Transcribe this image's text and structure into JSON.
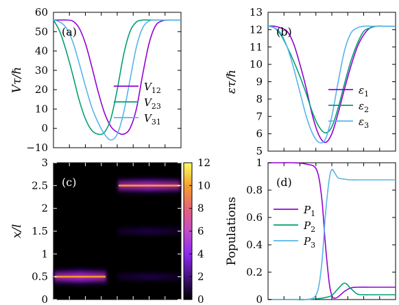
{
  "colors": {
    "purple": "#9400d3",
    "green": "#009e73",
    "cyan": "#56b4e9"
  },
  "chart_data": [
    {
      "type": "line",
      "panel_label": "(a)",
      "ylabel": "Vτ/ℏ",
      "xlabel": "",
      "ylim": [
        -10,
        60
      ],
      "yticks": [
        "−10",
        "0",
        "10",
        "20",
        "30",
        "40",
        "50",
        "60"
      ],
      "xlim": [
        0,
        1
      ],
      "grid": false,
      "legend": "bottom-right",
      "series": [
        {
          "name": "V12",
          "label_main": "V",
          "label_sub": "12",
          "color": "#9400d3",
          "x": [
            0,
            0.05,
            0.1,
            0.15,
            0.2,
            0.25,
            0.3,
            0.35,
            0.4,
            0.45,
            0.5,
            0.55,
            0.6,
            0.65,
            0.7,
            0.75,
            0.8,
            0.85,
            0.9,
            0.95,
            1
          ],
          "y": [
            56,
            56,
            56,
            55.5,
            52,
            44,
            32,
            19,
            8,
            1,
            -2,
            -3,
            0,
            10,
            28,
            44,
            53,
            55.5,
            56,
            56,
            56
          ]
        },
        {
          "name": "V23",
          "label_main": "V",
          "label_sub": "23",
          "color": "#009e73",
          "x": [
            0,
            0.05,
            0.1,
            0.15,
            0.2,
            0.25,
            0.3,
            0.35,
            0.4,
            0.45,
            0.5,
            0.55,
            0.6,
            0.65,
            0.7,
            0.75,
            0.8,
            0.85,
            0.9,
            0.95,
            1
          ],
          "y": [
            56,
            50,
            40,
            28,
            15,
            5,
            -1,
            -3,
            -2,
            5,
            20,
            38,
            50,
            55,
            56,
            56,
            56,
            56,
            56,
            56,
            56
          ]
        },
        {
          "name": "V31",
          "label_main": "V",
          "label_sub": "31",
          "color": "#56b4e9",
          "x": [
            0,
            0.05,
            0.1,
            0.15,
            0.2,
            0.25,
            0.3,
            0.35,
            0.4,
            0.45,
            0.5,
            0.55,
            0.6,
            0.65,
            0.7,
            0.75,
            0.8,
            0.85,
            0.9,
            0.95,
            1
          ],
          "y": [
            56,
            55,
            52,
            45,
            34,
            22,
            11,
            3,
            -3,
            -6,
            -3,
            8,
            25,
            42,
            52,
            55.5,
            56,
            56,
            56,
            56,
            56
          ]
        }
      ]
    },
    {
      "type": "line",
      "panel_label": "(b)",
      "ylabel": "ετ/ℏ",
      "xlabel": "",
      "ylim": [
        5,
        13
      ],
      "yticks": [
        "5",
        "6",
        "7",
        "8",
        "9",
        "10",
        "11",
        "12",
        "13"
      ],
      "xlim": [
        0,
        1
      ],
      "grid": false,
      "legend": "bottom-right",
      "series": [
        {
          "name": "ε1",
          "label_main": "ε",
          "label_sub": "1",
          "color": "#9400d3",
          "x": [
            0,
            0.05,
            0.1,
            0.15,
            0.2,
            0.25,
            0.3,
            0.35,
            0.4,
            0.45,
            0.5,
            0.55,
            0.6,
            0.65,
            0.7,
            0.75,
            0.8,
            0.85,
            0.9,
            0.95,
            1
          ],
          "y": [
            12.2,
            12.2,
            12.1,
            11.9,
            11.2,
            10,
            8.6,
            7,
            5.9,
            5.5,
            6,
            7.2,
            8.6,
            9.9,
            11,
            11.7,
            12.1,
            12.2,
            12.2,
            12.2,
            12.2
          ]
        },
        {
          "name": "ε2",
          "label_main": "ε",
          "label_sub": "2",
          "color": "#009e73",
          "x": [
            0,
            0.05,
            0.1,
            0.15,
            0.2,
            0.25,
            0.3,
            0.35,
            0.4,
            0.45,
            0.5,
            0.55,
            0.6,
            0.65,
            0.7,
            0.75,
            0.8,
            0.85,
            0.9,
            0.95,
            1
          ],
          "y": [
            12.2,
            12.1,
            11.7,
            11,
            10.2,
            9.3,
            8.3,
            7.2,
            6.4,
            6.05,
            6.4,
            7.5,
            8.9,
            10.2,
            11.2,
            11.9,
            12.1,
            12.2,
            12.2,
            12.2,
            12.2
          ]
        },
        {
          "name": "ε3",
          "label_main": "ε",
          "label_sub": "3",
          "color": "#56b4e9",
          "x": [
            0,
            0.05,
            0.1,
            0.15,
            0.2,
            0.25,
            0.3,
            0.35,
            0.4,
            0.45,
            0.5,
            0.55,
            0.6,
            0.65,
            0.7,
            0.75,
            0.8,
            0.85,
            0.9,
            0.95,
            1
          ],
          "y": [
            12.2,
            12.1,
            11.8,
            11,
            9.8,
            8.4,
            7,
            6,
            5.5,
            5.7,
            7,
            9,
            10.8,
            11.8,
            12.1,
            12.2,
            12.2,
            12.2,
            12.2,
            12.2,
            12.2
          ]
        }
      ]
    },
    {
      "type": "heatmap",
      "panel_label": "(c)",
      "ylabel": "x/l",
      "xlabel": "",
      "ylim": [
        0,
        3
      ],
      "yticks": [
        "0",
        "0.5",
        "1",
        "1.5",
        "2",
        "2.5",
        "3"
      ],
      "colorbar_range": [
        0,
        12
      ],
      "colorbar_ticks": [
        "0",
        "2",
        "4",
        "6",
        "8",
        "10",
        "12"
      ],
      "blobs": [
        {
          "x_range": [
            0,
            0.42
          ],
          "y": 0.5,
          "peak": 12
        },
        {
          "x_range": [
            0.5,
            1.0
          ],
          "y": 2.5,
          "peak": 11
        },
        {
          "x_range": [
            0.5,
            1.0
          ],
          "y": 1.5,
          "peak": 2
        },
        {
          "x_range": [
            0.5,
            1.0
          ],
          "y": 0.5,
          "peak": 2
        }
      ]
    },
    {
      "type": "line",
      "panel_label": "(d)",
      "ylabel": "Populations",
      "xlabel": "",
      "ylim": [
        0,
        1
      ],
      "yticks": [
        "0",
        "0.2",
        "0.4",
        "0.6",
        "0.8",
        "1"
      ],
      "xlim": [
        0,
        1
      ],
      "grid": false,
      "legend": "center-left",
      "series": [
        {
          "name": "P1",
          "label_main": "P",
          "label_sub": "1",
          "color": "#9400d3",
          "x": [
            0,
            0.1,
            0.2,
            0.3,
            0.38,
            0.42,
            0.45,
            0.48,
            0.5,
            0.52,
            0.55,
            0.6,
            0.65,
            0.7,
            0.8,
            0.9,
            1
          ],
          "y": [
            1,
            1,
            1,
            0.99,
            0.95,
            0.75,
            0.4,
            0.12,
            0.03,
            0.01,
            0.02,
            0.06,
            0.085,
            0.09,
            0.09,
            0.09,
            0.09
          ]
        },
        {
          "name": "P2",
          "label_main": "P",
          "label_sub": "2",
          "color": "#009e73",
          "x": [
            0,
            0.1,
            0.2,
            0.3,
            0.38,
            0.42,
            0.45,
            0.5,
            0.55,
            0.6,
            0.65,
            0.7,
            0.75,
            0.8,
            0.9,
            1
          ],
          "y": [
            0,
            0,
            0,
            0,
            0.005,
            0.01,
            0.015,
            0.03,
            0.08,
            0.12,
            0.08,
            0.04,
            0.035,
            0.035,
            0.035,
            0.035
          ]
        },
        {
          "name": "P3",
          "label_main": "P",
          "label_sub": "3",
          "color": "#56b4e9",
          "x": [
            0,
            0.1,
            0.2,
            0.3,
            0.38,
            0.42,
            0.45,
            0.48,
            0.5,
            0.52,
            0.55,
            0.6,
            0.65,
            0.7,
            0.8,
            0.9,
            1
          ],
          "y": [
            0,
            0,
            0,
            0,
            0.04,
            0.25,
            0.62,
            0.88,
            0.95,
            0.93,
            0.89,
            0.88,
            0.875,
            0.875,
            0.875,
            0.875,
            0.875
          ]
        }
      ]
    }
  ]
}
